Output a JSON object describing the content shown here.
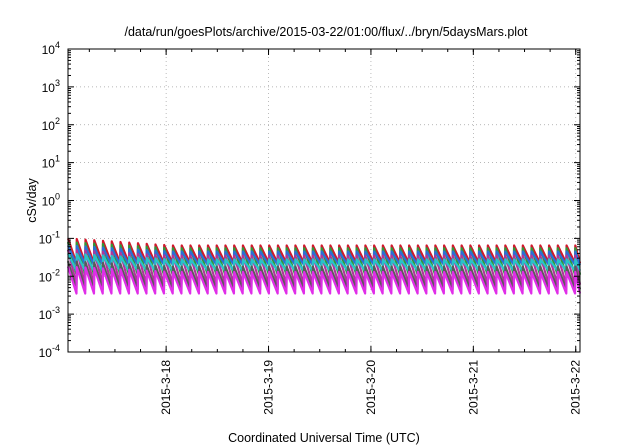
{
  "chart_data": {
    "type": "line",
    "title": "/data/run/goesPlots/archive/2015-03-22/01:00/flux/../bryn/5daysMars.plot",
    "xlabel": "Coordinated Universal Time (UTC)",
    "ylabel": "cSv/day",
    "yscale": "log",
    "ylim": [
      0.0001,
      10000
    ],
    "xlim": [
      "2015-03-17 01:00",
      "2015-03-22 01:00"
    ],
    "grid": true,
    "y_ticks": [
      {
        "value": 0.0001,
        "base": "10",
        "exp": "-4"
      },
      {
        "value": 0.001,
        "base": "10",
        "exp": "-3"
      },
      {
        "value": 0.01,
        "base": "10",
        "exp": "-2"
      },
      {
        "value": 0.1,
        "base": "10",
        "exp": "-1"
      },
      {
        "value": 1,
        "base": "10",
        "exp": "0"
      },
      {
        "value": 10,
        "base": "10",
        "exp": "1"
      },
      {
        "value": 100,
        "base": "10",
        "exp": "2"
      },
      {
        "value": 1000,
        "base": "10",
        "exp": "3"
      },
      {
        "value": 10000,
        "base": "10",
        "exp": "4"
      }
    ],
    "x_ticks": [
      {
        "label": "2015-3-18",
        "value": "2015-03-18 00:00"
      },
      {
        "label": "2015-3-19",
        "value": "2015-03-19 00:00"
      },
      {
        "label": "2015-3-20",
        "value": "2015-03-20 00:00"
      },
      {
        "label": "2015-3-21",
        "value": "2015-03-21 00:00"
      },
      {
        "label": "2015-3-22",
        "value": "2015-03-22 00:00"
      }
    ],
    "sawtooth_period_hours": 2.05,
    "series": [
      {
        "color": "#d0182c",
        "peak_early": 0.1,
        "peak_late": 0.065,
        "floor": 0.022
      },
      {
        "color": "#2e9a3a",
        "peak_early": 0.08,
        "peak_late": 0.055,
        "floor": 0.011
      },
      {
        "color": "#2b6fd6",
        "peak_early": 0.065,
        "peak_late": 0.045,
        "floor": 0.02
      },
      {
        "color": "#b0349c",
        "peak_early": 0.05,
        "peak_late": 0.035,
        "floor": 0.006
      },
      {
        "color": "#27c4c8",
        "peak_early": 0.04,
        "peak_late": 0.028,
        "floor": 0.014
      },
      {
        "color": "#5a5a5a",
        "peak_early": 0.025,
        "peak_late": 0.018,
        "floor": 0.0045
      },
      {
        "color": "#e02ee8",
        "peak_early": 0.018,
        "peak_late": 0.013,
        "floor": 0.0035
      }
    ]
  }
}
